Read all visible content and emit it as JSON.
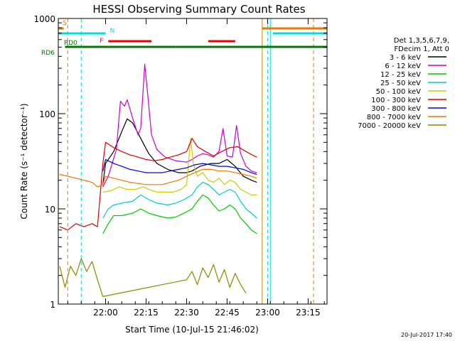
{
  "chart_data": {
    "type": "line",
    "title": "HESSI Observing Summary Count Rates",
    "xlabel": "Start Time (10-Jul-15 21:46:02)",
    "ylabel": "Count Rate (s⁻¹ detector⁻¹)",
    "yscale": "log",
    "ylim": [
      1,
      1000
    ],
    "xlim_minutes": [
      -3.5,
      96
    ],
    "x_ticks": [
      {
        "label": "22:00",
        "t": 14
      },
      {
        "label": "22:15",
        "t": 29
      },
      {
        "label": "22:30",
        "t": 44
      },
      {
        "label": "22:45",
        "t": 59
      },
      {
        "label": "23:00",
        "t": 74
      },
      {
        "label": "23:15",
        "t": 89
      }
    ],
    "y_ticks": [
      {
        "label": "1",
        "v": 1
      },
      {
        "label": "10",
        "v": 10
      },
      {
        "label": "100",
        "v": 100
      },
      {
        "label": "1000",
        "v": 1000
      }
    ],
    "grid": false,
    "legend_position": "right",
    "legend_header": [
      "Det 1,3,5,6,7,9,",
      "FDecim 1, Att 0"
    ],
    "series": [
      {
        "name": "3 - 6 keV",
        "color": "#000000",
        "points": [
          [
            13,
            18
          ],
          [
            14,
            30
          ],
          [
            17,
            40
          ],
          [
            20,
            65
          ],
          [
            22,
            88
          ],
          [
            24,
            80
          ],
          [
            27,
            55
          ],
          [
            30,
            38
          ],
          [
            33,
            30
          ],
          [
            37,
            26
          ],
          [
            41,
            24
          ],
          [
            44,
            24
          ],
          [
            46,
            25
          ],
          [
            49,
            28
          ],
          [
            53,
            30
          ],
          [
            56,
            30
          ],
          [
            59,
            33
          ],
          [
            62,
            28
          ],
          [
            65,
            22
          ],
          [
            68,
            20
          ],
          [
            70,
            19
          ]
        ]
      },
      {
        "name": "6 - 12 keV",
        "color": "#cc00cc",
        "points": [
          [
            13,
            17
          ],
          [
            15,
            22
          ],
          [
            18,
            42
          ],
          [
            19.5,
            135
          ],
          [
            21,
            120
          ],
          [
            22,
            140
          ],
          [
            24,
            90
          ],
          [
            26,
            60
          ],
          [
            27,
            70
          ],
          [
            28.5,
            330
          ],
          [
            29.5,
            170
          ],
          [
            31,
            60
          ],
          [
            33,
            42
          ],
          [
            36,
            35
          ],
          [
            40,
            32
          ],
          [
            44,
            31
          ],
          [
            46,
            33
          ],
          [
            48,
            36
          ],
          [
            50,
            38
          ],
          [
            52,
            37
          ],
          [
            54,
            35
          ],
          [
            56,
            40
          ],
          [
            57.5,
            70
          ],
          [
            59,
            36
          ],
          [
            61,
            35
          ],
          [
            62.5,
            75
          ],
          [
            64,
            38
          ],
          [
            66,
            28
          ],
          [
            68,
            25
          ],
          [
            70,
            24
          ]
        ]
      },
      {
        "name": "12 - 25 keV",
        "color": "#00cc00",
        "points": [
          [
            13,
            5.5
          ],
          [
            15,
            7
          ],
          [
            17,
            8.5
          ],
          [
            20,
            8.5
          ],
          [
            24,
            9
          ],
          [
            27,
            10
          ],
          [
            30,
            9
          ],
          [
            33,
            8.5
          ],
          [
            37,
            8
          ],
          [
            40,
            8.2
          ],
          [
            43,
            9
          ],
          [
            46,
            10
          ],
          [
            48,
            12
          ],
          [
            50,
            14
          ],
          [
            52,
            13
          ],
          [
            54,
            11
          ],
          [
            56,
            9.5
          ],
          [
            58,
            10
          ],
          [
            60,
            11
          ],
          [
            62,
            10
          ],
          [
            64,
            8
          ],
          [
            66,
            7
          ],
          [
            68,
            6
          ],
          [
            70,
            5.5
          ]
        ]
      },
      {
        "name": "25 - 50 keV",
        "color": "#00cccc",
        "points": [
          [
            13,
            8
          ],
          [
            15,
            10
          ],
          [
            17,
            11
          ],
          [
            20,
            11.5
          ],
          [
            24,
            12
          ],
          [
            27,
            14
          ],
          [
            30,
            12.5
          ],
          [
            33,
            11.5
          ],
          [
            37,
            11
          ],
          [
            40,
            11.5
          ],
          [
            43,
            12.5
          ],
          [
            46,
            14
          ],
          [
            48,
            17
          ],
          [
            50,
            19
          ],
          [
            52,
            18
          ],
          [
            54,
            16
          ],
          [
            56,
            14
          ],
          [
            58,
            15
          ],
          [
            60,
            16
          ],
          [
            62,
            15
          ],
          [
            64,
            12
          ],
          [
            66,
            10
          ],
          [
            68,
            9
          ],
          [
            70,
            8
          ]
        ]
      },
      {
        "name": "50 - 100 keV",
        "color": "#cccc00",
        "points": [
          [
            13,
            15
          ],
          [
            16,
            15.5
          ],
          [
            19,
            17
          ],
          [
            22,
            16
          ],
          [
            25,
            16
          ],
          [
            28,
            17
          ],
          [
            30,
            16
          ],
          [
            33,
            15
          ],
          [
            36,
            15
          ],
          [
            39,
            15
          ],
          [
            42,
            16
          ],
          [
            44,
            18
          ],
          [
            45.5,
            55
          ],
          [
            46.5,
            30
          ],
          [
            48,
            22
          ],
          [
            50,
            24
          ],
          [
            52,
            20
          ],
          [
            54,
            19
          ],
          [
            56,
            21
          ],
          [
            58,
            18
          ],
          [
            60,
            20
          ],
          [
            62,
            19
          ],
          [
            64,
            16
          ],
          [
            66,
            15
          ],
          [
            68,
            14
          ],
          [
            70,
            14
          ]
        ]
      },
      {
        "name": "100 - 300 keV",
        "color": "#dd0000",
        "points": [
          [
            -3,
            6.5
          ],
          [
            0,
            6
          ],
          [
            3,
            7
          ],
          [
            6,
            6.5
          ],
          [
            9,
            7
          ],
          [
            11,
            6.5
          ],
          [
            13,
            30
          ],
          [
            14,
            50
          ],
          [
            17,
            44
          ],
          [
            20,
            40
          ],
          [
            23,
            37
          ],
          [
            26,
            35
          ],
          [
            29,
            33
          ],
          [
            32,
            32
          ],
          [
            35,
            33
          ],
          [
            38,
            35
          ],
          [
            41,
            37
          ],
          [
            44,
            40
          ],
          [
            46,
            55
          ],
          [
            48,
            45
          ],
          [
            51,
            40
          ],
          [
            54,
            36
          ],
          [
            57,
            40
          ],
          [
            60,
            44
          ],
          [
            63,
            45
          ],
          [
            66,
            40
          ],
          [
            69,
            36
          ],
          [
            70,
            35
          ]
        ]
      },
      {
        "name": "300 - 800 keV",
        "color": "#0000dd",
        "points": [
          [
            13,
            25
          ],
          [
            14,
            33
          ],
          [
            17,
            30
          ],
          [
            20,
            28
          ],
          [
            23,
            26
          ],
          [
            26,
            25
          ],
          [
            29,
            24
          ],
          [
            32,
            24
          ],
          [
            35,
            24
          ],
          [
            38,
            25
          ],
          [
            41,
            26
          ],
          [
            44,
            27
          ],
          [
            47,
            29
          ],
          [
            50,
            30
          ],
          [
            53,
            29
          ],
          [
            56,
            28
          ],
          [
            59,
            28
          ],
          [
            62,
            27
          ],
          [
            65,
            26
          ],
          [
            68,
            24
          ],
          [
            70,
            23
          ]
        ]
      },
      {
        "name": "800 - 7000 keV",
        "color": "#ee7700",
        "points": [
          [
            -3,
            23
          ],
          [
            0,
            22
          ],
          [
            3,
            21
          ],
          [
            6,
            20
          ],
          [
            9,
            19
          ],
          [
            11,
            17
          ],
          [
            13,
            18
          ],
          [
            14,
            22
          ],
          [
            17,
            21
          ],
          [
            20,
            20
          ],
          [
            23,
            19
          ],
          [
            26,
            18.5
          ],
          [
            29,
            18
          ],
          [
            32,
            18
          ],
          [
            35,
            18
          ],
          [
            38,
            19
          ],
          [
            41,
            20
          ],
          [
            44,
            22
          ],
          [
            47,
            24
          ],
          [
            50,
            26
          ],
          [
            53,
            26
          ],
          [
            56,
            25
          ],
          [
            59,
            25
          ],
          [
            62,
            24
          ],
          [
            65,
            23
          ],
          [
            68,
            22
          ],
          [
            70,
            21
          ]
        ]
      },
      {
        "name": "7000 - 20000 keV",
        "color": "#888800",
        "points": [
          [
            -3,
            2.5
          ],
          [
            -1,
            1.5
          ],
          [
            1,
            2.5
          ],
          [
            3,
            2
          ],
          [
            5,
            3
          ],
          [
            7,
            2.2
          ],
          [
            9,
            2.8
          ],
          [
            11,
            1.8
          ],
          [
            13,
            1.2
          ],
          [
            44,
            1.8
          ],
          [
            46,
            2.2
          ],
          [
            48,
            1.6
          ],
          [
            50,
            2.4
          ],
          [
            52,
            1.9
          ],
          [
            54,
            2.6
          ],
          [
            56,
            1.7
          ],
          [
            58,
            2.3
          ],
          [
            60,
            1.5
          ],
          [
            62,
            2.1
          ],
          [
            64,
            1.6
          ],
          [
            66,
            1.3
          ]
        ]
      }
    ],
    "markers": {
      "dashed_cyan": [
        5,
        74
      ],
      "dashed_orange": [
        0,
        91
      ],
      "solid_orange": [
        72
      ],
      "solid_cyan": [
        75
      ]
    },
    "flags": [
      {
        "label": "S",
        "color": "#ee7700",
        "segments": [
          [
            -3.5,
            -1.5
          ],
          [
            72,
            96
          ]
        ]
      },
      {
        "label": "N",
        "color": "#00dddd",
        "segments": [
          [
            -3.5,
            14
          ],
          [
            76,
            96
          ]
        ]
      },
      {
        "label": "F",
        "color": "#ee0000",
        "segments": [
          [
            15,
            31
          ],
          [
            52,
            62
          ]
        ]
      },
      {
        "label": "RD0",
        "color": "#007700",
        "segments": [
          [
            -1,
            15
          ],
          [
            15,
            40
          ],
          [
            40,
            56
          ],
          [
            56,
            96
          ]
        ]
      }
    ]
  },
  "rd6_label": "RD6",
  "timestamp": "20-Jul-2017 17:40"
}
